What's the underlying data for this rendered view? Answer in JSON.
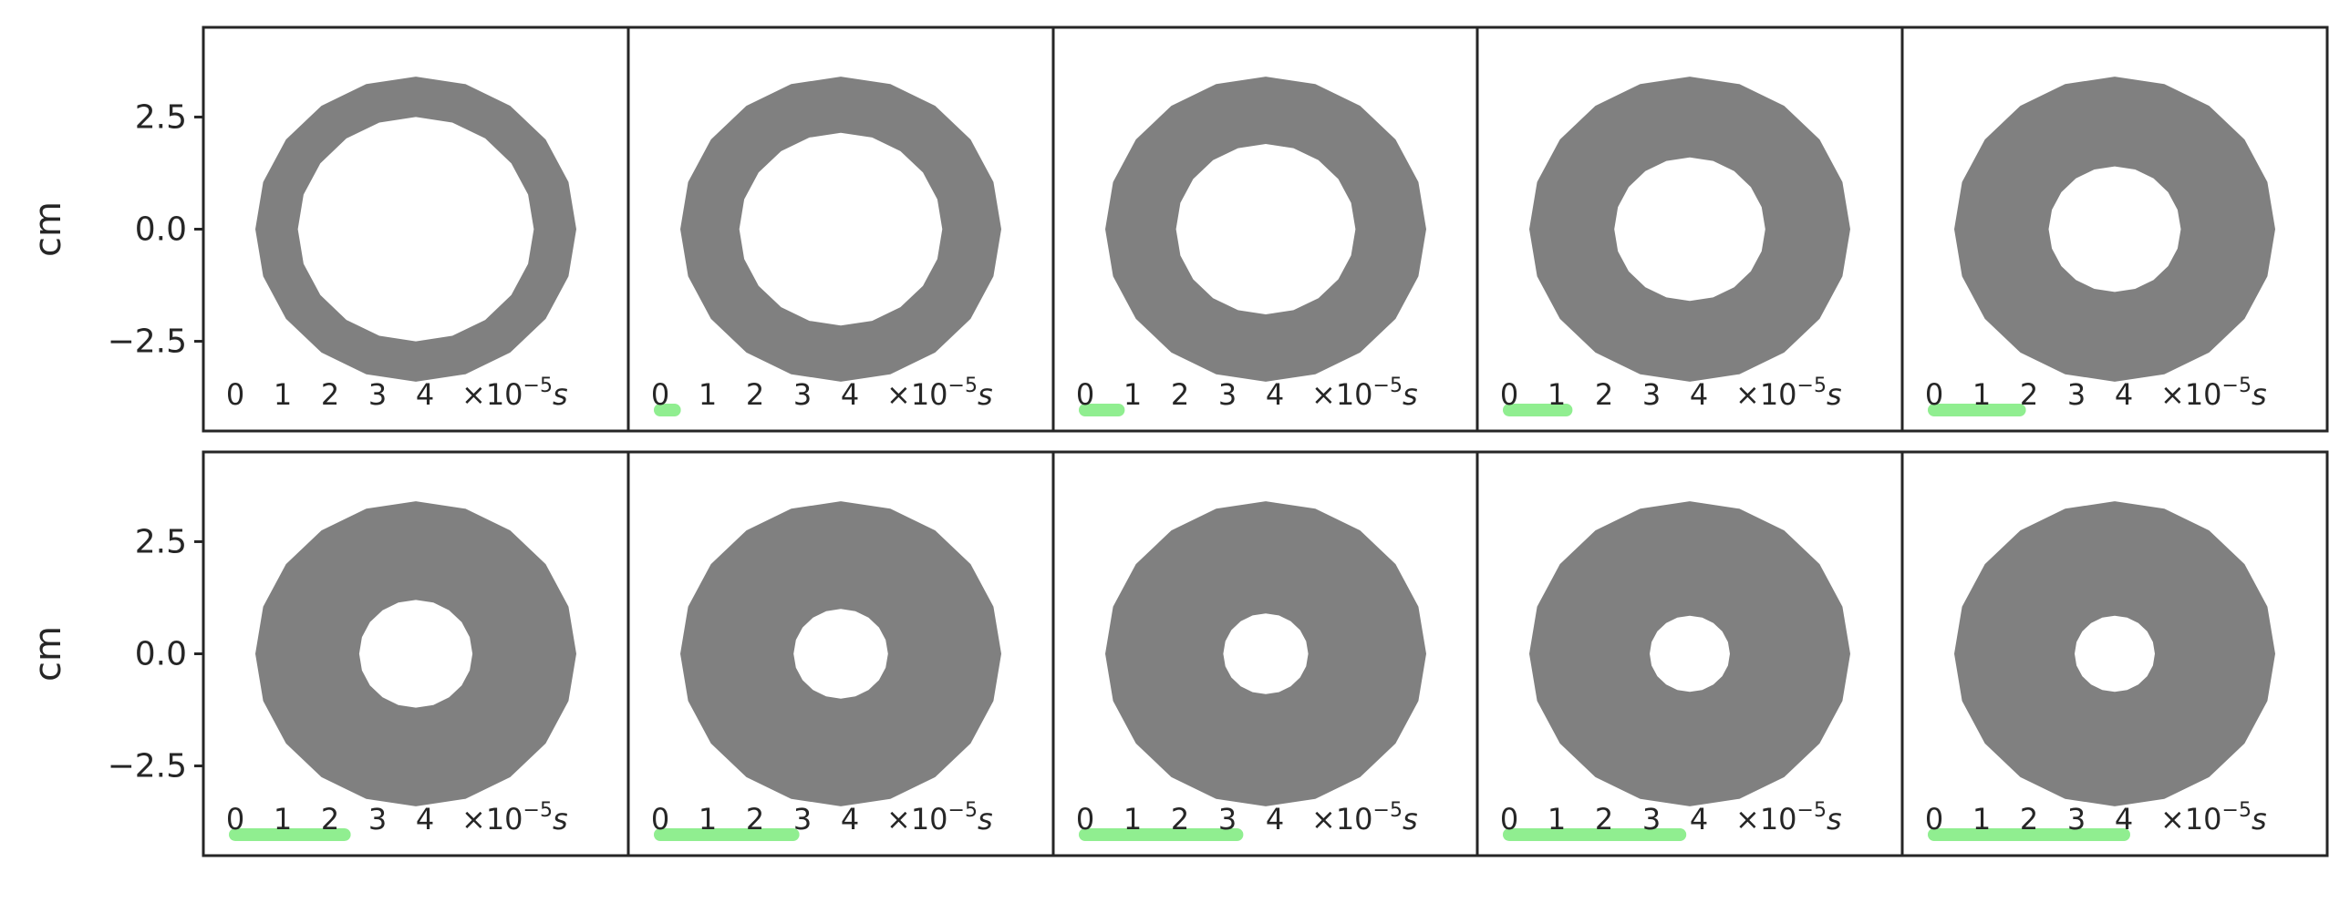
{
  "chart_data": {
    "type": "panel-grid",
    "ylabel": "cm",
    "yticks": [
      2.5,
      0.0,
      -2.5
    ],
    "ytick_labels": [
      "2.5",
      "0.0",
      "−2.5"
    ],
    "ylim": [
      -4.5,
      4.5
    ],
    "xlim": [
      -4.5,
      4.5
    ],
    "outer_radius": 3.4,
    "shape_color": "#808080",
    "progress_color": "#90ee90",
    "time_ticks": [
      "0",
      "1",
      "2",
      "3",
      "4"
    ],
    "time_unit": {
      "prefix": "×10",
      "exponent": "−5",
      "unit": "s"
    },
    "time_max": 4,
    "panels": [
      {
        "time": 0.0,
        "inner_radius": 2.5
      },
      {
        "time": 0.3,
        "inner_radius": 2.15
      },
      {
        "time": 0.7,
        "inner_radius": 1.9
      },
      {
        "time": 1.2,
        "inner_radius": 1.6
      },
      {
        "time": 1.8,
        "inner_radius": 1.4
      },
      {
        "time": 2.3,
        "inner_radius": 1.2
      },
      {
        "time": 2.8,
        "inner_radius": 1.0
      },
      {
        "time": 3.2,
        "inner_radius": 0.9
      },
      {
        "time": 3.6,
        "inner_radius": 0.85
      },
      {
        "time": 4.0,
        "inner_radius": 0.85
      }
    ]
  }
}
